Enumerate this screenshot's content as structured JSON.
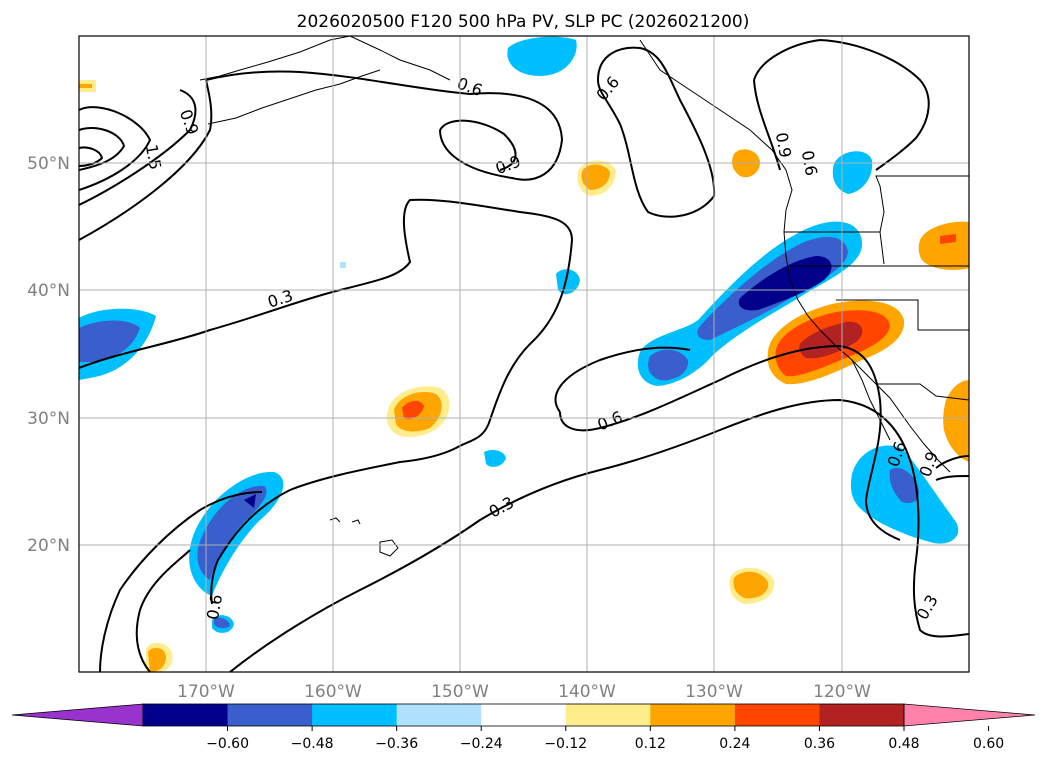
{
  "title": "2026020500 F120 500 hPa PV, SLP PC (2026021200)",
  "axes": {
    "lat_labels": [
      "50°N",
      "40°N",
      "30°N",
      "20°N"
    ],
    "lon_labels": [
      "170°W",
      "160°W",
      "150°W",
      "140°W",
      "130°W",
      "120°W"
    ],
    "gridlines": true
  },
  "colorbar": {
    "ticks": [
      "−0.60",
      "−0.48",
      "−0.36",
      "−0.24",
      "−0.12",
      "0.12",
      "0.24",
      "0.36",
      "0.48",
      "0.60"
    ],
    "colors": [
      "#9a32cd",
      "#00008b",
      "#3a5fcd",
      "#00bfff",
      "#b0e2ff",
      "#ffffff",
      "#ffec8b",
      "#ffa500",
      "#ff4500",
      "#b22222",
      "#ff82ab"
    ]
  },
  "contour_labels": [
    "0.6",
    "0.9",
    "0.6",
    "0.9",
    "1.5",
    "0.3",
    "0.6",
    "0.3",
    "0.6",
    "0.9",
    "0.6",
    "0.3",
    "0.6",
    "0.9"
  ]
}
